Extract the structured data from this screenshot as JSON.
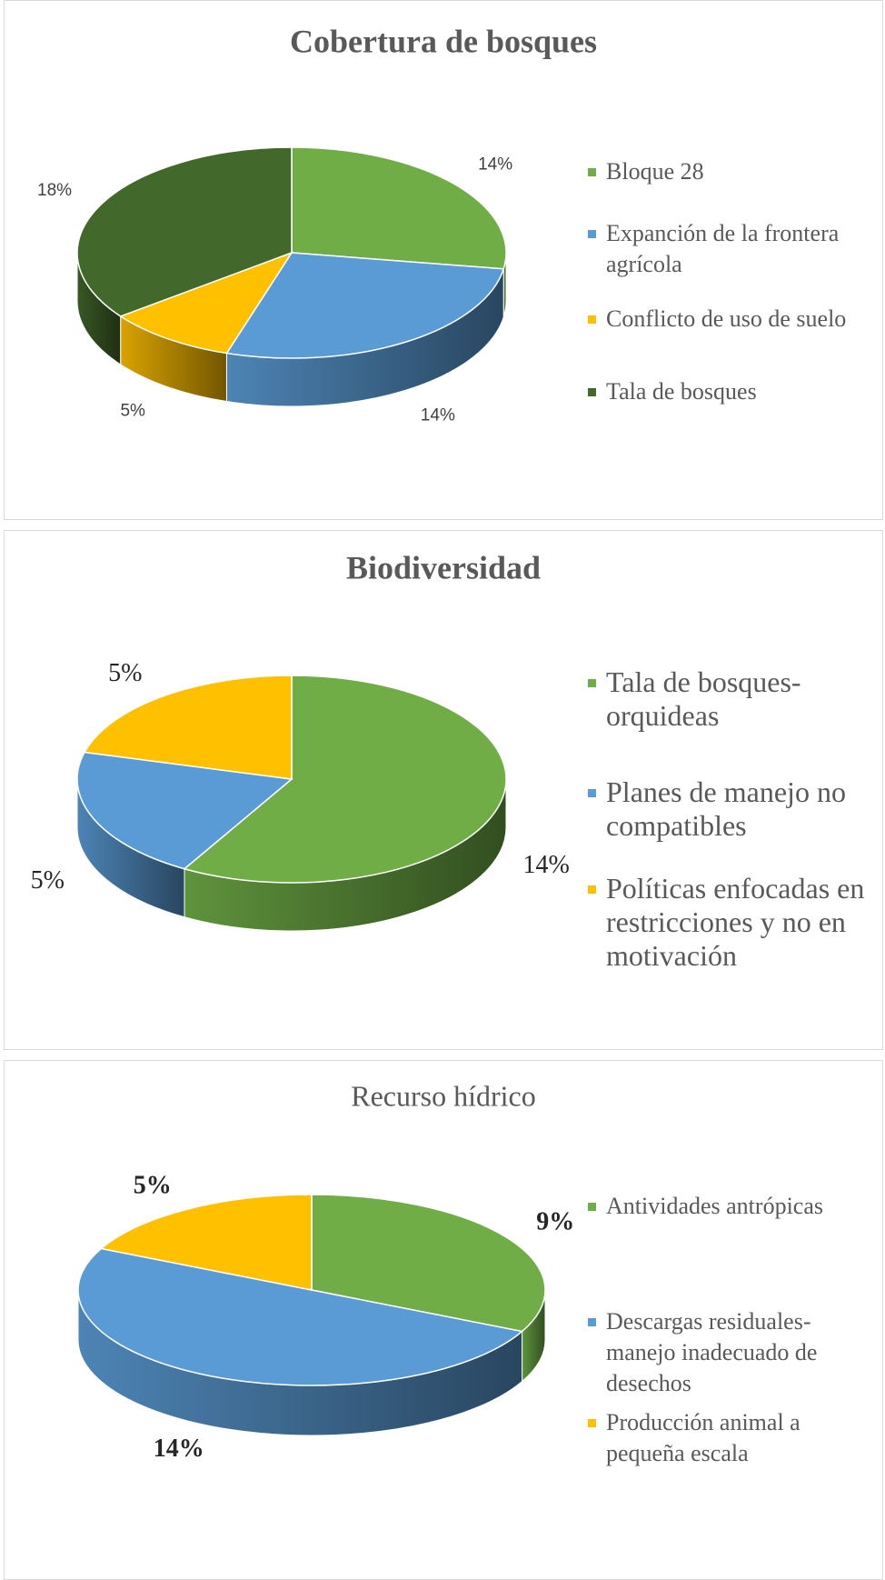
{
  "chart_data": [
    {
      "type": "pie",
      "title": "Cobertura de bosques",
      "categories": [
        "Bloque 28",
        "Expanción de la frontera agrícola",
        "Conflicto de uso de suelo",
        "Tala de bosques"
      ],
      "values": [
        14,
        14,
        5,
        18
      ],
      "value_labels": [
        "14%",
        "14%",
        "5%",
        "18%"
      ],
      "colors": [
        "#70ad47",
        "#5b9bd5",
        "#ffc000",
        "#43682b"
      ]
    },
    {
      "type": "pie",
      "title": "Biodiversidad",
      "categories": [
        "Tala de bosques-orquideas",
        "Planes de manejo no compatibles",
        "Políticas enfocadas en restricciones y no en motivación"
      ],
      "values": [
        14,
        5,
        5
      ],
      "value_labels": [
        "14%",
        "5%",
        "5%"
      ],
      "colors": [
        "#70ad47",
        "#5b9bd5",
        "#ffc000"
      ]
    },
    {
      "type": "pie",
      "title": "Recurso hídrico",
      "categories": [
        "Antividades antrópicas",
        "Descargas residuales-manejo inadecuado de desechos",
        "Producción animal a pequeña escala"
      ],
      "values": [
        9,
        14,
        5
      ],
      "value_labels": [
        "9%",
        "14%",
        "5%"
      ],
      "colors": [
        "#70ad47",
        "#5b9bd5",
        "#ffc000"
      ]
    }
  ]
}
